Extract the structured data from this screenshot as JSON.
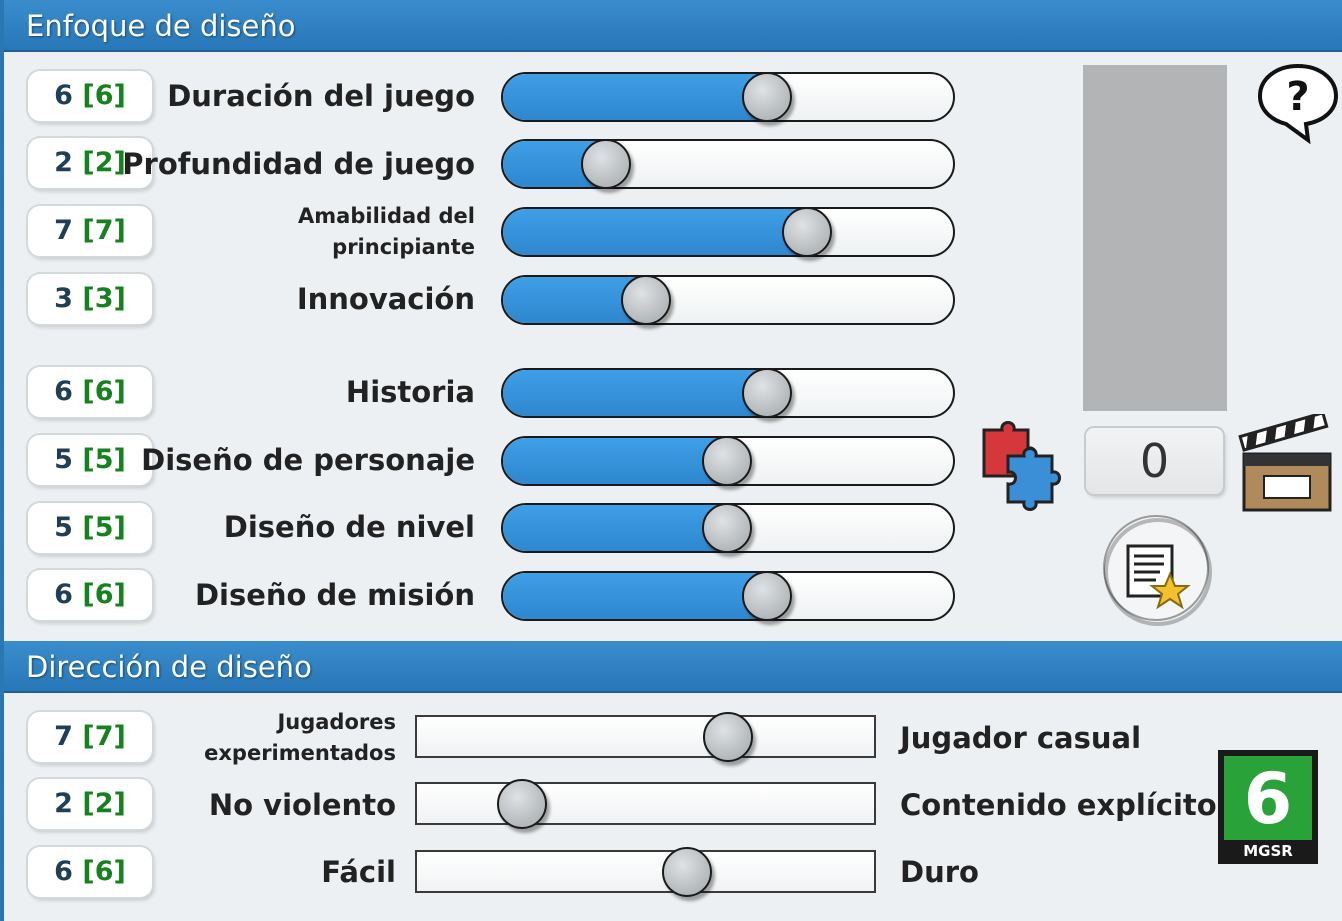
{
  "focus": {
    "title": "Enfoque de diseño",
    "sliders": [
      {
        "label": "Duración del juego",
        "value": "6",
        "suggested": "[6]",
        "level": 6
      },
      {
        "label": "Profundidad de juego",
        "value": "2",
        "suggested": "[2]",
        "level": 2
      },
      {
        "label": "Amabilidad del principiante",
        "value": "7",
        "suggested": "[7]",
        "level": 7
      },
      {
        "label": "Innovación",
        "value": "3",
        "suggested": "[3]",
        "level": 3
      },
      {
        "label": "Historia",
        "value": "6",
        "suggested": "[6]",
        "level": 6
      },
      {
        "label": "Diseño de personaje",
        "value": "5",
        "suggested": "[5]",
        "level": 5
      },
      {
        "label": "Diseño de nivel",
        "value": "5",
        "suggested": "[5]",
        "level": 5
      },
      {
        "label": "Diseño de misión",
        "value": "6",
        "suggested": "[6]",
        "level": 6
      }
    ],
    "max_level": 10
  },
  "direction": {
    "title": "Dirección de diseño",
    "sliders": [
      {
        "left": "Jugadores experimentados",
        "right": "Jugador casual",
        "value": "7",
        "suggested": "[7]",
        "level": 7
      },
      {
        "left": "No violento",
        "right": "Contenido explícito",
        "value": "2",
        "suggested": "[2]",
        "level": 2
      },
      {
        "left": "Fácil",
        "right": "Duro",
        "value": "6",
        "suggested": "[6]",
        "level": 6
      }
    ],
    "max_level": 10
  },
  "side_panel": {
    "counter": "0",
    "rating_number": "6",
    "rating_label": "MGSR",
    "icons": [
      "help-icon",
      "puzzle-icon",
      "clapperboard-icon",
      "notes-star-icon"
    ]
  },
  "colors": {
    "header": "#2e80c2",
    "slider_fill": "#3597dd",
    "suggested_text": "#16821f",
    "rating_green": "#2aa23a"
  }
}
